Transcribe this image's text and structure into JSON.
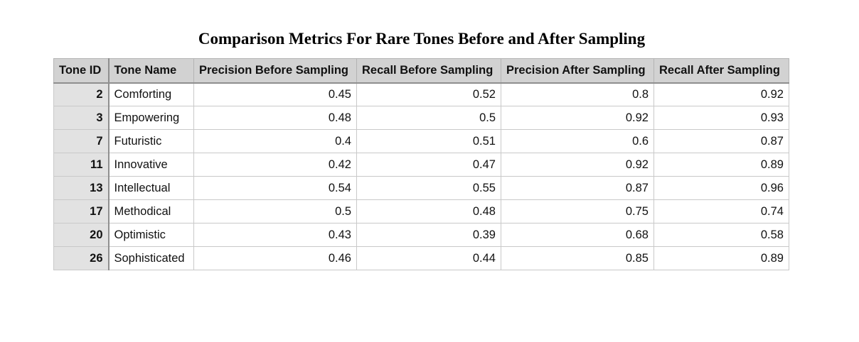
{
  "chart_data": {
    "type": "table",
    "title": "Comparison Metrics For Rare Tones Before and After Sampling",
    "columns": [
      "Tone ID",
      "Tone Name",
      "Precision Before Sampling",
      "Recall Before Sampling",
      "Precision After Sampling",
      "Recall After Sampling"
    ],
    "rows": [
      [
        "2",
        "Comforting",
        "0.45",
        "0.52",
        "0.8",
        "0.92"
      ],
      [
        "3",
        "Empowering",
        "0.48",
        "0.5",
        "0.92",
        "0.93"
      ],
      [
        "7",
        "Futuristic",
        "0.4",
        "0.51",
        "0.6",
        "0.87"
      ],
      [
        "11",
        "Innovative",
        "0.42",
        "0.47",
        "0.92",
        "0.89"
      ],
      [
        "13",
        "Intellectual",
        "0.54",
        "0.55",
        "0.87",
        "0.96"
      ],
      [
        "17",
        "Methodical",
        "0.5",
        "0.48",
        "0.75",
        "0.74"
      ],
      [
        "20",
        "Optimistic",
        "0.43",
        "0.39",
        "0.68",
        "0.58"
      ],
      [
        "26",
        "Sophisticated",
        "0.46",
        "0.44",
        "0.85",
        "0.89"
      ]
    ]
  },
  "colors": {
    "header_bg": "#d2d2d2",
    "id_column_bg": "#e2e2e2",
    "grid_line": "#c9c9c9",
    "strong_line": "#8f8f8f"
  }
}
